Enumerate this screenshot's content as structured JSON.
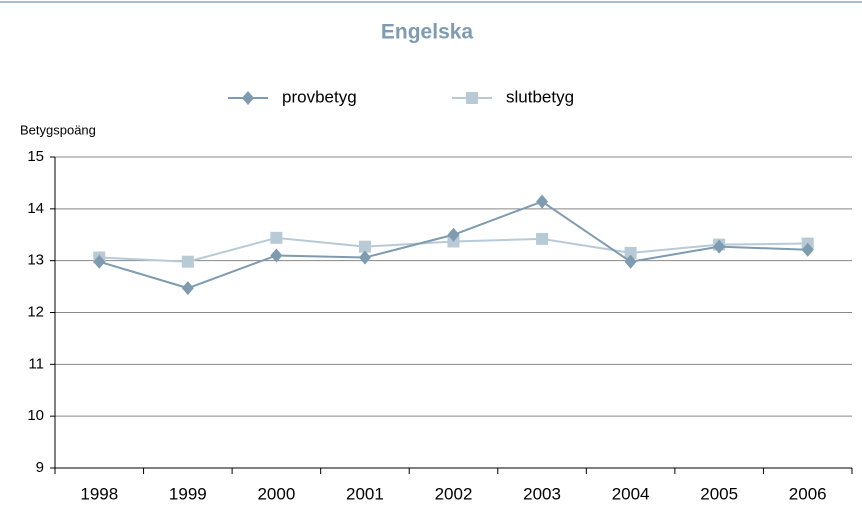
{
  "chart_data": {
    "type": "line",
    "title": "Engelska",
    "y_label": "Betygspoäng",
    "categories": [
      "1998",
      "1999",
      "2000",
      "2001",
      "2002",
      "2003",
      "2004",
      "2005",
      "2006"
    ],
    "series": [
      {
        "name": "provbetyg",
        "color": "#7f9bb0",
        "marker": "diamond",
        "values": [
          12.98,
          12.47,
          13.1,
          13.06,
          13.5,
          14.14,
          12.98,
          13.27,
          13.21
        ]
      },
      {
        "name": "slutbetyg",
        "color": "#b8cad6",
        "marker": "square",
        "values": [
          13.06,
          12.98,
          13.44,
          13.27,
          13.37,
          13.42,
          13.15,
          13.31,
          13.33
        ]
      }
    ],
    "ylim": [
      9,
      15
    ],
    "yticks": [
      9,
      10,
      11,
      12,
      13,
      14,
      15
    ],
    "grid": true,
    "legend": "top"
  }
}
